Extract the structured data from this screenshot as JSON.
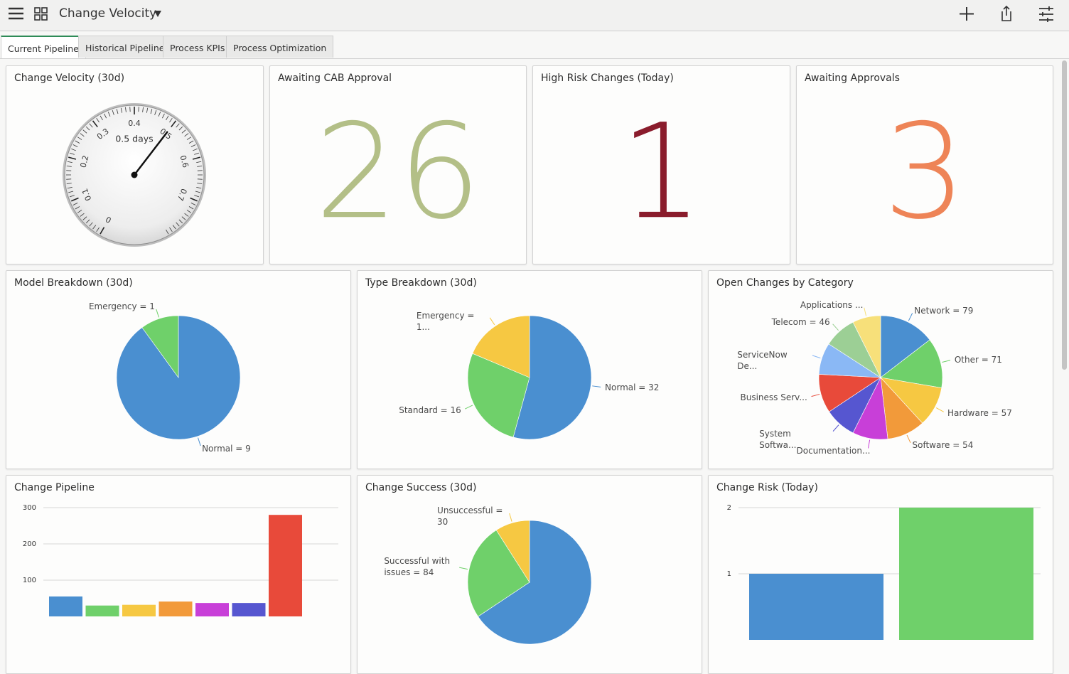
{
  "header": {
    "title": "Change Velocity"
  },
  "tabs": [
    "Current Pipeline",
    "Historical Pipeline",
    "Process KPIs",
    "Process Optimization"
  ],
  "chart_data": [
    {
      "type": "gauge",
      "title": "Change Velocity (30d)",
      "values": [
        0.5
      ],
      "value_labels": [
        "0.5 days"
      ],
      "ylim": [
        0,
        0.8
      ],
      "yticks": [
        0,
        0.1,
        0.2,
        0.3,
        0.4,
        0.5,
        0.6,
        0.7
      ]
    },
    {
      "type": "score",
      "title": "Awaiting CAB Approval",
      "values": [
        26
      ],
      "color": "#b3bf87"
    },
    {
      "type": "score",
      "title": "High Risk Changes (Today)",
      "values": [
        1
      ],
      "color": "#8a1c2c"
    },
    {
      "type": "score",
      "title": "Awaiting Approvals",
      "values": [
        3
      ],
      "color": "#ee8457"
    },
    {
      "type": "pie",
      "title": "Model Breakdown (30d)",
      "categories": [
        "Normal",
        "Emergency"
      ],
      "values": [
        9,
        1
      ],
      "value_labels": [
        "Normal = 9",
        "Emergency = 1"
      ],
      "colors": [
        "#4a8fd0",
        "#6fd06a"
      ]
    },
    {
      "type": "pie",
      "title": "Type Breakdown (30d)",
      "categories": [
        "Normal",
        "Standard",
        "Emergency"
      ],
      "values": [
        32,
        16,
        11
      ],
      "value_labels": [
        "Normal = 32",
        "Standard = 16",
        "Emergency = 1..."
      ],
      "colors": [
        "#4a8fd0",
        "#6fd06a",
        "#f6c842"
      ]
    },
    {
      "type": "pie",
      "title": "Open Changes by Category",
      "categories": [
        "Network",
        "Other",
        "Hardware",
        "Software",
        "Documentation...",
        "System Softwa...",
        "Business Serv...",
        "ServiceNow De...",
        "Telecom",
        "Applications ..."
      ],
      "values": [
        79,
        71,
        57,
        54,
        50,
        45,
        55,
        45,
        46,
        40
      ],
      "value_labels": [
        "Network = 79",
        "Other = 71",
        "Hardware = 57",
        "Software = 54",
        "Documentation...",
        "System Softwa...",
        "Business Serv...",
        "ServiceNow De...",
        "Telecom = 46",
        "Applications ..."
      ],
      "colors": [
        "#4a8fd0",
        "#6fd06a",
        "#f6c842",
        "#f29a3a",
        "#c83fd8",
        "#5656d0",
        "#e84a3a",
        "#8ab8f5",
        "#9ccf95",
        "#f7e07a"
      ]
    },
    {
      "type": "bar",
      "title": "Change Pipeline",
      "categories": [
        null,
        null,
        null,
        null,
        null,
        null,
        null
      ],
      "values": [
        55,
        30,
        32,
        41,
        37,
        37,
        280
      ],
      "colors": [
        "#4a8fd0",
        "#6fd06a",
        "#f6c842",
        "#f29a3a",
        "#c83fd8",
        "#5656d0",
        "#e84a3a"
      ],
      "ylim": [
        0,
        300
      ],
      "yticks": [
        100,
        200,
        300
      ],
      "grid": true
    },
    {
      "type": "pie",
      "title": "Change Success (30d)",
      "categories": [
        null,
        "Successful with issues",
        "Unsuccessful"
      ],
      "values": [
        218,
        84,
        30
      ],
      "value_labels": [
        null,
        "Successful with issues = 84",
        "Unsuccessful = 30"
      ],
      "colors": [
        "#4a8fd0",
        "#6fd06a",
        "#f6c842"
      ]
    },
    {
      "type": "bar",
      "title": "Change Risk (Today)",
      "categories": [
        null,
        null
      ],
      "values": [
        1,
        2
      ],
      "colors": [
        "#4a8fd0",
        "#6fd06a"
      ],
      "ylim": [
        0,
        2
      ],
      "yticks": [
        1,
        2
      ],
      "grid": true
    }
  ]
}
